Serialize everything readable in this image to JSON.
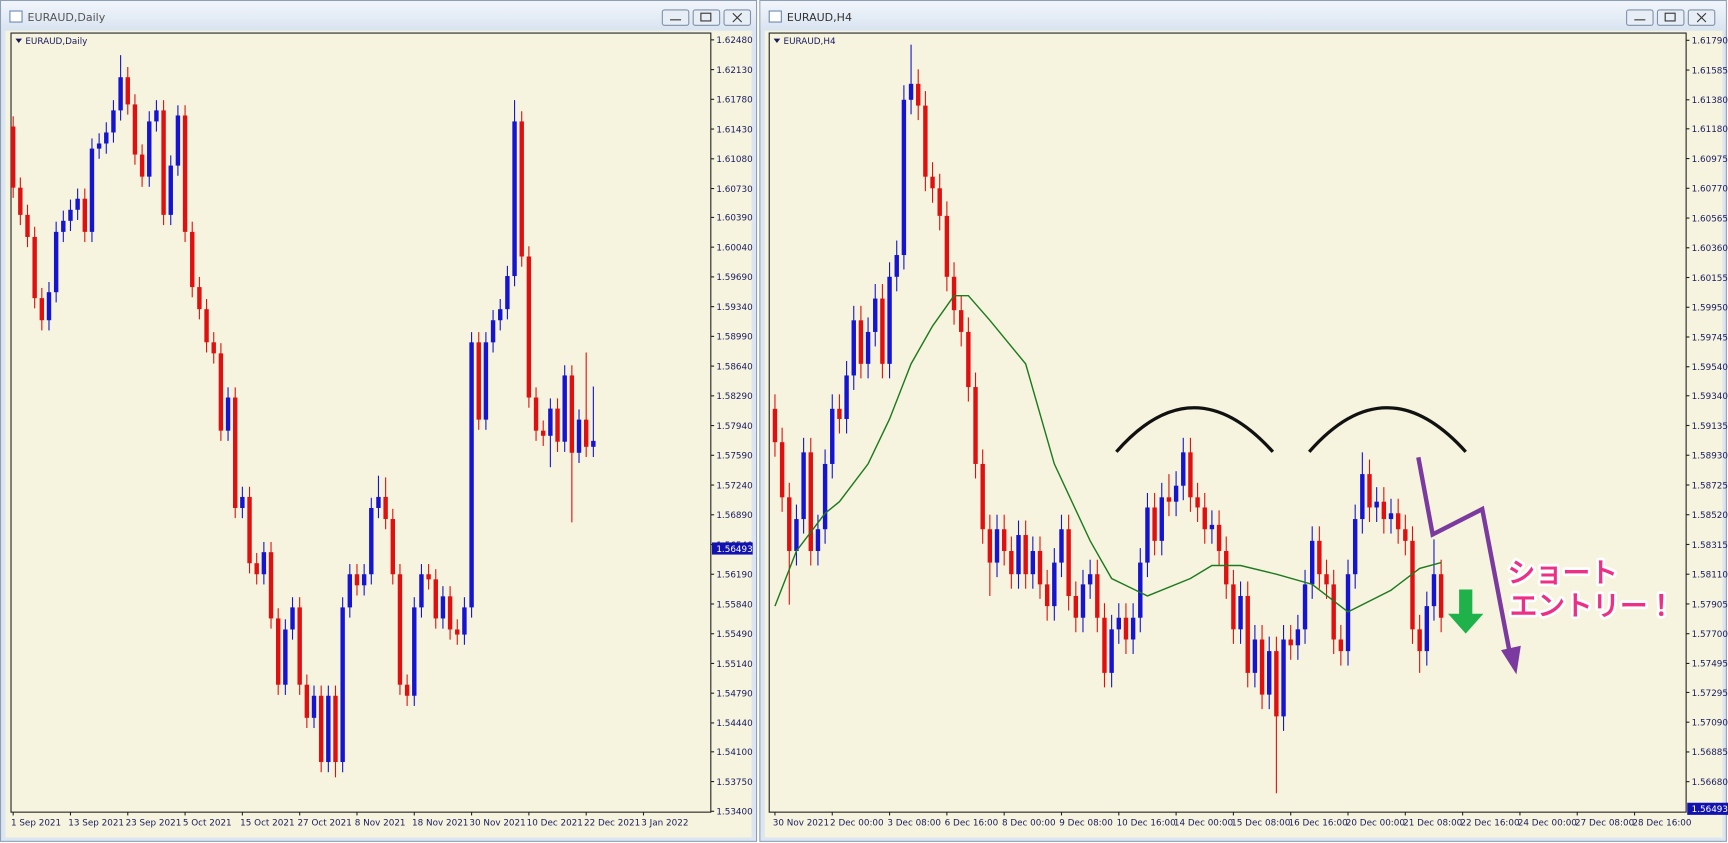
{
  "windows": [
    {
      "title": "EURAUD,Daily"
    },
    {
      "title": "EURAUD,H4"
    }
  ],
  "chart_data": [
    {
      "type": "candlestick",
      "label": "EURAUD,Daily",
      "up_color": "#1414d2",
      "down_color": "#e01010",
      "xlim": [
        -0.3,
        97.4
      ],
      "ylim": [
        1.5339,
        1.6256
      ],
      "xticks": [
        {
          "value": 0,
          "label": "1 Sep 2021"
        },
        {
          "value": 8,
          "label": "13 Sep 2021"
        },
        {
          "value": 16,
          "label": "23 Sep 2021"
        },
        {
          "value": 24,
          "label": "5 Oct 2021"
        },
        {
          "value": 32,
          "label": "15 Oct 2021"
        },
        {
          "value": 40,
          "label": "27 Oct 2021"
        },
        {
          "value": 48,
          "label": "8 Nov 2021"
        },
        {
          "value": 56,
          "label": "18 Nov 2021"
        },
        {
          "value": 64,
          "label": "30 Nov 2021"
        },
        {
          "value": 72,
          "label": "10 Dec 2021"
        },
        {
          "value": 80,
          "label": "22 Dec 2021"
        },
        {
          "value": 88,
          "label": "3 Jan 2022"
        }
      ],
      "yticks": [
        {
          "value": 1.6248,
          "label": "1.62480"
        },
        {
          "value": 1.6213,
          "label": "1.62130"
        },
        {
          "value": 1.6178,
          "label": "1.61780"
        },
        {
          "value": 1.6143,
          "label": "1.61430"
        },
        {
          "value": 1.6108,
          "label": "1.61080"
        },
        {
          "value": 1.6073,
          "label": "1.60730"
        },
        {
          "value": 1.6039,
          "label": "1.60390"
        },
        {
          "value": 1.6004,
          "label": "1.60040"
        },
        {
          "value": 1.5969,
          "label": "1.59690"
        },
        {
          "value": 1.5934,
          "label": "1.59340"
        },
        {
          "value": 1.5899,
          "label": "1.58990"
        },
        {
          "value": 1.5864,
          "label": "1.58640"
        },
        {
          "value": 1.5829,
          "label": "1.58290"
        },
        {
          "value": 1.5794,
          "label": "1.57940"
        },
        {
          "value": 1.5759,
          "label": "1.57590"
        },
        {
          "value": 1.5724,
          "label": "1.57240"
        },
        {
          "value": 1.5689,
          "label": "1.56890"
        },
        {
          "value": 1.5654,
          "label": "1.56540"
        },
        {
          "value": 1.5619,
          "label": "1.56190"
        },
        {
          "value": 1.5584,
          "label": "1.55840"
        },
        {
          "value": 1.5549,
          "label": "1.55490"
        },
        {
          "value": 1.5514,
          "label": "1.55140"
        },
        {
          "value": 1.5479,
          "label": "1.54790"
        },
        {
          "value": 1.5444,
          "label": "1.54440"
        },
        {
          "value": 1.541,
          "label": "1.54100"
        },
        {
          "value": 1.5375,
          "label": "1.53750"
        },
        {
          "value": 1.534,
          "label": "1.53400"
        }
      ],
      "current_price": {
        "value": 1.56493,
        "label": "1.56493"
      },
      "open": [
        1.6146,
        1.6074,
        1.6042,
        1.6016,
        1.5944,
        1.5918,
        1.5951,
        1.6022,
        1.6035,
        1.6048,
        1.6061,
        1.6022,
        1.612,
        1.6126,
        1.6139,
        1.6165,
        1.6204,
        1.6172,
        1.6113,
        1.6087,
        1.6152,
        1.6165,
        1.6042,
        1.61,
        1.6159,
        1.6022,
        1.5957,
        1.5931,
        1.5892,
        1.5879,
        1.5788,
        1.5827,
        1.5697,
        1.571,
        1.5632,
        1.5619,
        1.5645,
        1.5567,
        1.5489,
        1.5554,
        1.558,
        1.5489,
        1.545,
        1.5476,
        1.5398,
        1.5476,
        1.5398,
        1.558,
        1.5619,
        1.5606,
        1.5619,
        1.5697,
        1.571,
        1.5684,
        1.5619,
        1.5489,
        1.5476,
        1.558,
        1.5619,
        1.5613,
        1.5567,
        1.5593,
        1.5554,
        1.5548,
        1.558,
        1.5892,
        1.5801,
        1.5892,
        1.5918,
        1.5931,
        1.597,
        1.6152,
        1.5993,
        1.5827,
        1.5788,
        1.5782,
        1.5814,
        1.5775,
        1.5853,
        1.5762,
        1.5801,
        1.5769
      ],
      "high": [
        1.6158,
        1.6086,
        1.6054,
        1.6028,
        1.5956,
        1.5963,
        1.6034,
        1.6047,
        1.606,
        1.6073,
        1.6073,
        1.6132,
        1.6138,
        1.6151,
        1.6177,
        1.623,
        1.6216,
        1.6184,
        1.6125,
        1.6164,
        1.6177,
        1.6177,
        1.6112,
        1.6171,
        1.6171,
        1.6034,
        1.5969,
        1.5943,
        1.5904,
        1.5891,
        1.5839,
        1.5839,
        1.5722,
        1.5722,
        1.5644,
        1.5657,
        1.5657,
        1.5579,
        1.5566,
        1.5592,
        1.5592,
        1.5501,
        1.5488,
        1.5488,
        1.5488,
        1.5488,
        1.5592,
        1.5631,
        1.5631,
        1.5631,
        1.5709,
        1.5735,
        1.5733,
        1.5696,
        1.5631,
        1.5501,
        1.5592,
        1.5631,
        1.5631,
        1.5625,
        1.5605,
        1.5605,
        1.5566,
        1.5592,
        1.5904,
        1.5904,
        1.5904,
        1.593,
        1.5943,
        1.5982,
        1.6177,
        1.6164,
        1.6005,
        1.5839,
        1.58,
        1.5826,
        1.5826,
        1.5865,
        1.5865,
        1.5813,
        1.588,
        1.584
      ],
      "low": [
        1.6062,
        1.603,
        1.6004,
        1.5932,
        1.5906,
        1.5906,
        1.5939,
        1.601,
        1.6023,
        1.6036,
        1.601,
        1.601,
        1.6108,
        1.6114,
        1.6127,
        1.6153,
        1.616,
        1.6101,
        1.6075,
        1.6075,
        1.614,
        1.603,
        1.603,
        1.6088,
        1.601,
        1.5945,
        1.5919,
        1.588,
        1.5867,
        1.5776,
        1.5776,
        1.5685,
        1.5685,
        1.562,
        1.5607,
        1.5607,
        1.5555,
        1.5477,
        1.5477,
        1.5542,
        1.5477,
        1.5438,
        1.5438,
        1.5386,
        1.5386,
        1.538,
        1.5386,
        1.5568,
        1.5594,
        1.5594,
        1.5607,
        1.5685,
        1.5672,
        1.5607,
        1.5477,
        1.5464,
        1.5464,
        1.5568,
        1.5601,
        1.5555,
        1.5555,
        1.5542,
        1.5536,
        1.5536,
        1.5568,
        1.5789,
        1.5789,
        1.588,
        1.5906,
        1.5919,
        1.5958,
        1.5981,
        1.5815,
        1.5776,
        1.577,
        1.5745,
        1.5763,
        1.5763,
        1.568,
        1.575,
        1.5757,
        1.5757
      ],
      "close": [
        1.6074,
        1.6042,
        1.6016,
        1.5944,
        1.5918,
        1.5951,
        1.6022,
        1.6035,
        1.6048,
        1.6061,
        1.6022,
        1.612,
        1.6126,
        1.6139,
        1.6165,
        1.6204,
        1.6172,
        1.6113,
        1.6087,
        1.6152,
        1.6165,
        1.6042,
        1.61,
        1.6159,
        1.6022,
        1.5957,
        1.5931,
        1.5892,
        1.5879,
        1.5788,
        1.5827,
        1.5697,
        1.571,
        1.5632,
        1.5619,
        1.5645,
        1.5567,
        1.5489,
        1.5554,
        1.558,
        1.5489,
        1.545,
        1.5476,
        1.5398,
        1.5476,
        1.5398,
        1.558,
        1.5619,
        1.5606,
        1.5619,
        1.5697,
        1.571,
        1.5684,
        1.5619,
        1.5489,
        1.5476,
        1.558,
        1.5619,
        1.5613,
        1.5567,
        1.5593,
        1.5554,
        1.5548,
        1.558,
        1.5892,
        1.5801,
        1.5892,
        1.5918,
        1.5931,
        1.597,
        1.6152,
        1.5993,
        1.5827,
        1.5788,
        1.5782,
        1.5814,
        1.5775,
        1.5853,
        1.5762,
        1.5801,
        1.5769,
        1.5776
      ]
    },
    {
      "type": "candlestick",
      "label": "EURAUD,H4",
      "up_color": "#1414d2",
      "down_color": "#e01010",
      "xlim": [
        -0.8,
        127.2
      ],
      "ylim": [
        1.5647,
        1.6184
      ],
      "xticks": [
        {
          "value": 0,
          "label": "30 Nov 2021"
        },
        {
          "value": 8,
          "label": "2 Dec 00:00"
        },
        {
          "value": 16,
          "label": "3 Dec 08:00"
        },
        {
          "value": 24,
          "label": "6 Dec 16:00"
        },
        {
          "value": 32,
          "label": "8 Dec 00:00"
        },
        {
          "value": 40,
          "label": "9 Dec 08:00"
        },
        {
          "value": 48,
          "label": "10 Dec 16:00"
        },
        {
          "value": 56,
          "label": "14 Dec 00:00"
        },
        {
          "value": 64,
          "label": "15 Dec 08:00"
        },
        {
          "value": 72,
          "label": "16 Dec 16:00"
        },
        {
          "value": 80,
          "label": "20 Dec 00:00"
        },
        {
          "value": 88,
          "label": "21 Dec 08:00"
        },
        {
          "value": 96,
          "label": "22 Dec 16:00"
        },
        {
          "value": 104,
          "label": "24 Dec 00:00"
        },
        {
          "value": 112,
          "label": "27 Dec 08:00"
        },
        {
          "value": 120,
          "label": "28 Dec 16:00"
        }
      ],
      "yticks": [
        {
          "value": 1.6179,
          "label": "1.61790"
        },
        {
          "value": 1.61585,
          "label": "1.61585"
        },
        {
          "value": 1.6138,
          "label": "1.61380"
        },
        {
          "value": 1.6118,
          "label": "1.61180"
        },
        {
          "value": 1.60975,
          "label": "1.60975"
        },
        {
          "value": 1.6077,
          "label": "1.60770"
        },
        {
          "value": 1.60565,
          "label": "1.60565"
        },
        {
          "value": 1.6036,
          "label": "1.60360"
        },
        {
          "value": 1.60155,
          "label": "1.60155"
        },
        {
          "value": 1.5995,
          "label": "1.59950"
        },
        {
          "value": 1.59745,
          "label": "1.59745"
        },
        {
          "value": 1.5954,
          "label": "1.59540"
        },
        {
          "value": 1.5934,
          "label": "1.59340"
        },
        {
          "value": 1.59135,
          "label": "1.59135"
        },
        {
          "value": 1.5893,
          "label": "1.58930"
        },
        {
          "value": 1.58725,
          "label": "1.58725"
        },
        {
          "value": 1.5852,
          "label": "1.58520"
        },
        {
          "value": 1.58315,
          "label": "1.58315"
        },
        {
          "value": 1.5811,
          "label": "1.58110"
        },
        {
          "value": 1.57905,
          "label": "1.57905"
        },
        {
          "value": 1.577,
          "label": "1.57700"
        },
        {
          "value": 1.57495,
          "label": "1.57495"
        },
        {
          "value": 1.57295,
          "label": "1.57295"
        },
        {
          "value": 1.5709,
          "label": "1.57090"
        },
        {
          "value": 1.56885,
          "label": "1.56885"
        },
        {
          "value": 1.5668,
          "label": "1.56680"
        }
      ],
      "current_price": {
        "value": 1.56493,
        "label": "1.56493"
      },
      "open": [
        1.5925,
        1.5902,
        1.5864,
        1.5827,
        1.5849,
        1.5895,
        1.5827,
        1.5842,
        1.5887,
        1.5925,
        1.5918,
        1.5948,
        1.5986,
        1.5956,
        1.5978,
        1.6001,
        1.5956,
        1.6016,
        1.6031,
        1.6138,
        1.6149,
        1.6134,
        1.6085,
        1.6077,
        1.6058,
        1.6016,
        1.5993,
        1.5978,
        1.594,
        1.5887,
        1.5842,
        1.5819,
        1.5842,
        1.5827,
        1.5811,
        1.5838,
        1.5811,
        1.5827,
        1.5804,
        1.5789,
        1.5819,
        1.5842,
        1.5796,
        1.5781,
        1.5804,
        1.5811,
        1.5781,
        1.5743,
        1.5773,
        1.5781,
        1.5766,
        1.5781,
        1.5819,
        1.5857,
        1.5834,
        1.5864,
        1.5861,
        1.5872,
        1.5895,
        1.5864,
        1.5857,
        1.5842,
        1.5845,
        1.5827,
        1.5804,
        1.5773,
        1.5796,
        1.5743,
        1.5766,
        1.5728,
        1.5758,
        1.5713,
        1.5766,
        1.5762,
        1.5773,
        1.5804,
        1.5834,
        1.5811,
        1.5804,
        1.5766,
        1.5758,
        1.5811,
        1.5849,
        1.588,
        1.5857,
        1.5861,
        1.5849,
        1.5853,
        1.5842,
        1.5834,
        1.5773,
        1.5758,
        1.5789,
        1.5811
      ],
      "high": [
        1.5935,
        1.5912,
        1.5874,
        1.5859,
        1.5905,
        1.5905,
        1.5852,
        1.5897,
        1.5935,
        1.5935,
        1.5958,
        1.5996,
        1.5996,
        1.5988,
        1.6011,
        1.6011,
        1.6026,
        1.6041,
        1.6148,
        1.6176,
        1.6159,
        1.6144,
        1.6095,
        1.6087,
        1.6068,
        1.6026,
        1.6003,
        1.5988,
        1.595,
        1.5897,
        1.5852,
        1.5852,
        1.5852,
        1.5837,
        1.5848,
        1.5848,
        1.5837,
        1.5837,
        1.5814,
        1.5829,
        1.5852,
        1.5852,
        1.5806,
        1.5814,
        1.5821,
        1.5821,
        1.5791,
        1.5783,
        1.5791,
        1.5791,
        1.5791,
        1.5829,
        1.5867,
        1.5867,
        1.5874,
        1.588,
        1.5882,
        1.5905,
        1.5905,
        1.5874,
        1.5867,
        1.5855,
        1.5855,
        1.5837,
        1.5814,
        1.5806,
        1.5806,
        1.5776,
        1.5776,
        1.5768,
        1.5768,
        1.5776,
        1.5776,
        1.5783,
        1.5814,
        1.5844,
        1.5844,
        1.5821,
        1.5814,
        1.5776,
        1.5821,
        1.5859,
        1.5895,
        1.589,
        1.5871,
        1.5871,
        1.5863,
        1.5863,
        1.5852,
        1.5844,
        1.5783,
        1.5799,
        1.5835,
        1.5821
      ],
      "low": [
        1.5892,
        1.5854,
        1.579,
        1.5817,
        1.5839,
        1.5817,
        1.5817,
        1.5832,
        1.5877,
        1.5908,
        1.5908,
        1.5938,
        1.5946,
        1.5946,
        1.5968,
        1.5946,
        1.5946,
        1.6006,
        1.6021,
        1.6128,
        1.6124,
        1.6075,
        1.6067,
        1.6048,
        1.6006,
        1.5983,
        1.5968,
        1.593,
        1.5877,
        1.5832,
        1.5796,
        1.5809,
        1.5817,
        1.5801,
        1.5801,
        1.5801,
        1.5801,
        1.5794,
        1.5779,
        1.5779,
        1.5809,
        1.5786,
        1.5771,
        1.5771,
        1.5794,
        1.5771,
        1.5733,
        1.5733,
        1.5763,
        1.5756,
        1.5756,
        1.5771,
        1.5809,
        1.5824,
        1.5824,
        1.5851,
        1.5851,
        1.5862,
        1.5854,
        1.5847,
        1.5832,
        1.5832,
        1.5817,
        1.5794,
        1.5763,
        1.5763,
        1.5733,
        1.5733,
        1.5718,
        1.5718,
        1.566,
        1.5703,
        1.5752,
        1.5752,
        1.5763,
        1.5794,
        1.5801,
        1.5794,
        1.5756,
        1.5748,
        1.5748,
        1.5801,
        1.5839,
        1.5847,
        1.5847,
        1.5839,
        1.5839,
        1.5832,
        1.5824,
        1.5763,
        1.5743,
        1.5748,
        1.5779,
        1.5771
      ],
      "close": [
        1.5902,
        1.5864,
        1.5827,
        1.5849,
        1.5895,
        1.5827,
        1.5842,
        1.5887,
        1.5925,
        1.5918,
        1.5948,
        1.5986,
        1.5956,
        1.5978,
        1.6001,
        1.5956,
        1.6016,
        1.6031,
        1.6138,
        1.6149,
        1.6134,
        1.6085,
        1.6077,
        1.6058,
        1.6016,
        1.5993,
        1.5978,
        1.594,
        1.5887,
        1.5842,
        1.5819,
        1.5842,
        1.5827,
        1.5811,
        1.5838,
        1.5811,
        1.5827,
        1.5804,
        1.5789,
        1.5819,
        1.5842,
        1.5796,
        1.5781,
        1.5804,
        1.5811,
        1.5781,
        1.5743,
        1.5773,
        1.5781,
        1.5766,
        1.5781,
        1.5819,
        1.5857,
        1.5834,
        1.5864,
        1.5861,
        1.5872,
        1.5895,
        1.5864,
        1.5857,
        1.5842,
        1.5845,
        1.5827,
        1.5804,
        1.5773,
        1.5796,
        1.5743,
        1.5766,
        1.5728,
        1.5758,
        1.5713,
        1.5766,
        1.5762,
        1.5773,
        1.5804,
        1.5834,
        1.5811,
        1.5804,
        1.5766,
        1.5758,
        1.5811,
        1.5849,
        1.588,
        1.5857,
        1.5861,
        1.5849,
        1.5853,
        1.5842,
        1.5834,
        1.5773,
        1.5758,
        1.5789,
        1.5811,
        1.5781
      ],
      "ma": {
        "color": "#1f7a1f",
        "x": [
          0,
          3,
          7,
          9,
          13,
          16,
          19,
          22,
          25,
          27,
          30,
          35,
          39,
          44,
          47,
          52,
          58,
          61,
          65,
          70,
          75,
          80,
          86,
          90,
          93
        ],
        "values": [
          1.5789,
          1.5827,
          1.5853,
          1.5861,
          1.5887,
          1.5918,
          1.5956,
          1.5982,
          1.6003,
          1.6003,
          1.5986,
          1.5956,
          1.5887,
          1.5834,
          1.5808,
          1.5796,
          1.5808,
          1.5817,
          1.5817,
          1.5811,
          1.5804,
          1.5785,
          1.58,
          1.5815,
          1.5819
        ]
      },
      "annotation": [
        "ショート",
        "エントリー！"
      ]
    }
  ]
}
